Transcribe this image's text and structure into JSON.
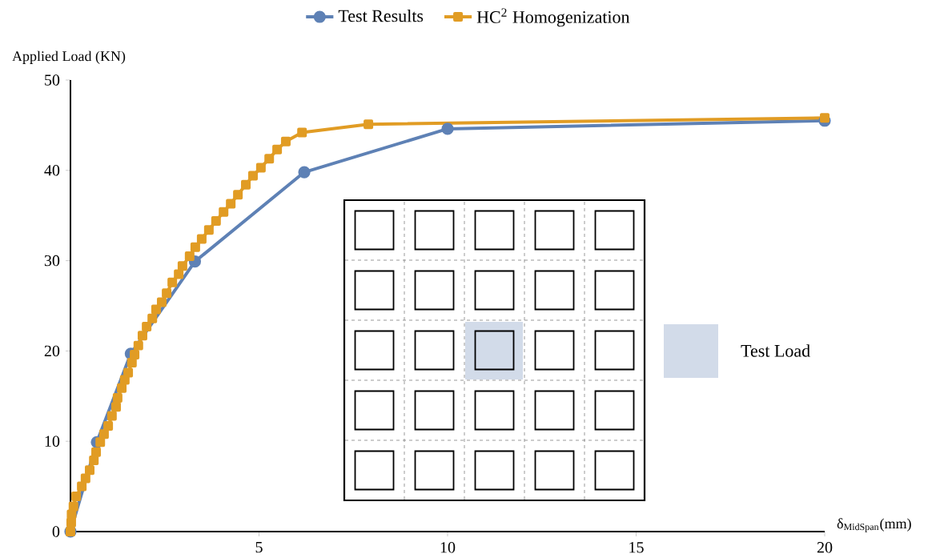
{
  "chart_data": {
    "type": "line",
    "xlabel": "δ$_{MidSpan}$(mm)",
    "ylabel": "Applied Load (KN)",
    "xlim": [
      0,
      20
    ],
    "ylim": [
      0,
      50
    ],
    "xticks": [
      5,
      10,
      15,
      20
    ],
    "yticks": [
      0,
      10,
      20,
      30,
      40,
      50
    ],
    "legend": "top",
    "annotations": [
      "Test Load"
    ],
    "series": [
      {
        "name": "Test Results",
        "color": "#5e81b5",
        "marker": "circle",
        "x": [
          0,
          0.7,
          1.6,
          3.3,
          6.2,
          10,
          20
        ],
        "values": [
          0,
          9.9,
          19.7,
          29.9,
          39.8,
          44.6,
          45.5
        ]
      },
      {
        "name": "HC$^{2}$ Homogenization",
        "color": "#e19c24",
        "marker": "square",
        "x": [
          0,
          0.02,
          0.03,
          0.08,
          0.15,
          0.3,
          0.4,
          0.51,
          0.62,
          0.68,
          0.79,
          0.89,
          1.0,
          1.1,
          1.21,
          1.25,
          1.36,
          1.44,
          1.53,
          1.63,
          1.7,
          1.8,
          1.91,
          2.02,
          2.17,
          2.27,
          2.42,
          2.55,
          2.7,
          2.87,
          2.97,
          3.16,
          3.31,
          3.48,
          3.67,
          3.86,
          4.06,
          4.25,
          4.44,
          4.65,
          4.84,
          5.05,
          5.27,
          5.48,
          5.71,
          6.14,
          7.9,
          20
        ],
        "values": [
          0,
          1.0,
          1.9,
          2.8,
          3.9,
          5.0,
          5.9,
          6.8,
          7.9,
          8.8,
          9.9,
          10.8,
          11.7,
          12.8,
          13.8,
          14.8,
          15.9,
          16.8,
          17.6,
          18.7,
          19.6,
          20.6,
          21.7,
          22.7,
          23.6,
          24.6,
          25.4,
          26.4,
          27.6,
          28.5,
          29.4,
          30.5,
          31.5,
          32.4,
          33.4,
          34.4,
          35.4,
          36.3,
          37.3,
          38.4,
          39.4,
          40.3,
          41.3,
          42.3,
          43.2,
          44.2,
          45.1,
          45.8
        ]
      }
    ]
  }
}
